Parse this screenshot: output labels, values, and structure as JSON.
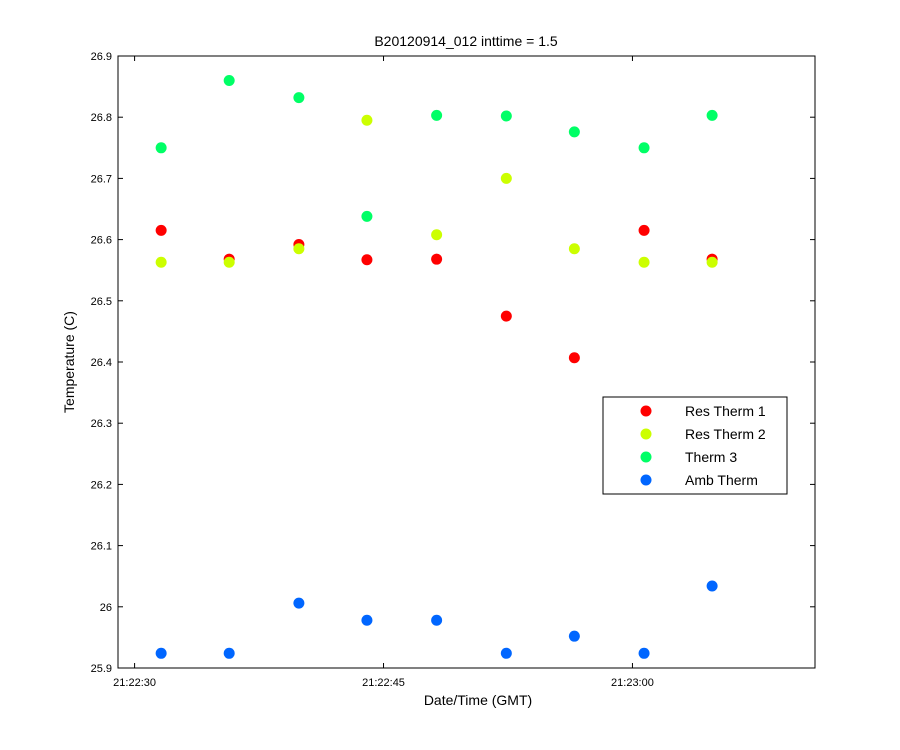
{
  "chart_data": {
    "type": "scatter",
    "title": "B20120914_012 inttime = 1.5",
    "xlabel": "Date/Time (GMT)",
    "ylabel": "Temperature (C)",
    "xlim": [
      "21:22:29",
      "21:23:11"
    ],
    "ylim": [
      25.9,
      26.9
    ],
    "x_ticks": [
      "21:22:30",
      "21:22:45",
      "21:23:00"
    ],
    "y_ticks": [
      "25.9",
      "26",
      "26.1",
      "26.2",
      "26.3",
      "26.4",
      "26.5",
      "26.6",
      "26.7",
      "26.8",
      "26.9"
    ],
    "grid": false,
    "legend_position": "right",
    "x": [
      "21:22:31.6",
      "21:22:35.7",
      "21:22:39.9",
      "21:22:44",
      "21:22:48.2",
      "21:22:52.4",
      "21:22:56.5",
      "21:23:00.7",
      "21:23:04.8"
    ],
    "series": [
      {
        "name": "Res Therm 1",
        "color": "#ff0000",
        "values": [
          26.615,
          26.568,
          26.592,
          26.567,
          26.568,
          26.475,
          26.407,
          26.615,
          26.568
        ]
      },
      {
        "name": "Res Therm 2",
        "color": "#ccff00",
        "values": [
          26.563,
          26.563,
          26.585,
          26.795,
          26.608,
          26.7,
          26.585,
          26.563,
          26.563
        ]
      },
      {
        "name": "Therm 3",
        "color": "#00ff66",
        "values": [
          26.75,
          26.86,
          26.832,
          26.638,
          26.803,
          26.802,
          26.776,
          26.75,
          26.803
        ]
      },
      {
        "name": "Amb Therm",
        "color": "#0066ff",
        "values": [
          25.924,
          25.924,
          26.006,
          25.978,
          25.978,
          25.924,
          25.952,
          25.924,
          26.034
        ]
      }
    ]
  }
}
